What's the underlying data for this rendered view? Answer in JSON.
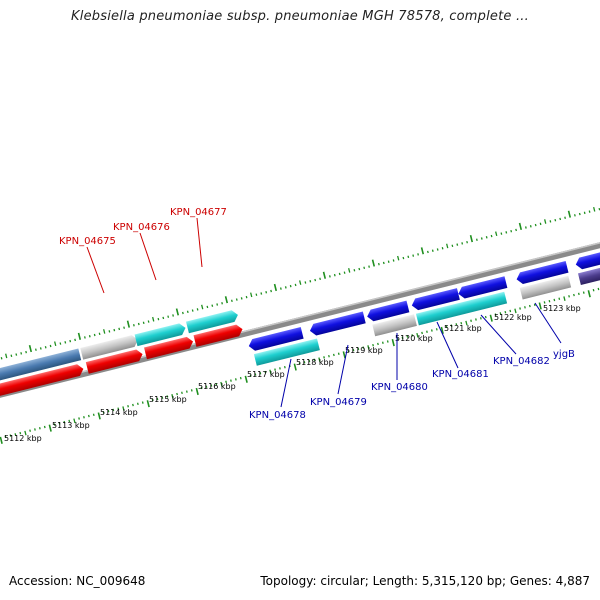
{
  "title": "Klebsiella pneumoniae subsp. pneumoniae MGH 78578, complete ...",
  "footer": {
    "accession": "Accession: NC_009648",
    "topology": "Topology: circular; Length: 5,315,120 bp; Genes: 4,887"
  },
  "colors": {
    "backbone": "#8a8a8a",
    "scale_ticks": "#1f8f1f",
    "forward_label": "#cc0000",
    "reverse_label": "#0000aa",
    "forward_gene": "#ee0000",
    "forward_rna": "#1ecfcf",
    "pseudo_gene": "#c0c0c0",
    "steelblue_gene": "#4a7ab0",
    "reverse_gene": "#1010e0",
    "reverse_rna": "#1ecfcf",
    "dark_gene": "#4b3c8c"
  },
  "scale": {
    "labels": [
      "5112 kbp",
      "5113 kbp",
      "5114 kbp",
      "5115 kbp",
      "5116 kbp",
      "5117 kbp",
      "5118 kbp",
      "5119 kbp",
      "5120 kbp",
      "5121 kbp",
      "5122 kbp",
      "5123 kbp"
    ]
  },
  "labels": {
    "forward": [
      "KPN_04675",
      "KPN_04676",
      "KPN_04677"
    ],
    "reverse": [
      "KPN_04678",
      "KPN_04679",
      "KPN_04680",
      "KPN_04681",
      "KPN_04682",
      "yjgB"
    ]
  }
}
